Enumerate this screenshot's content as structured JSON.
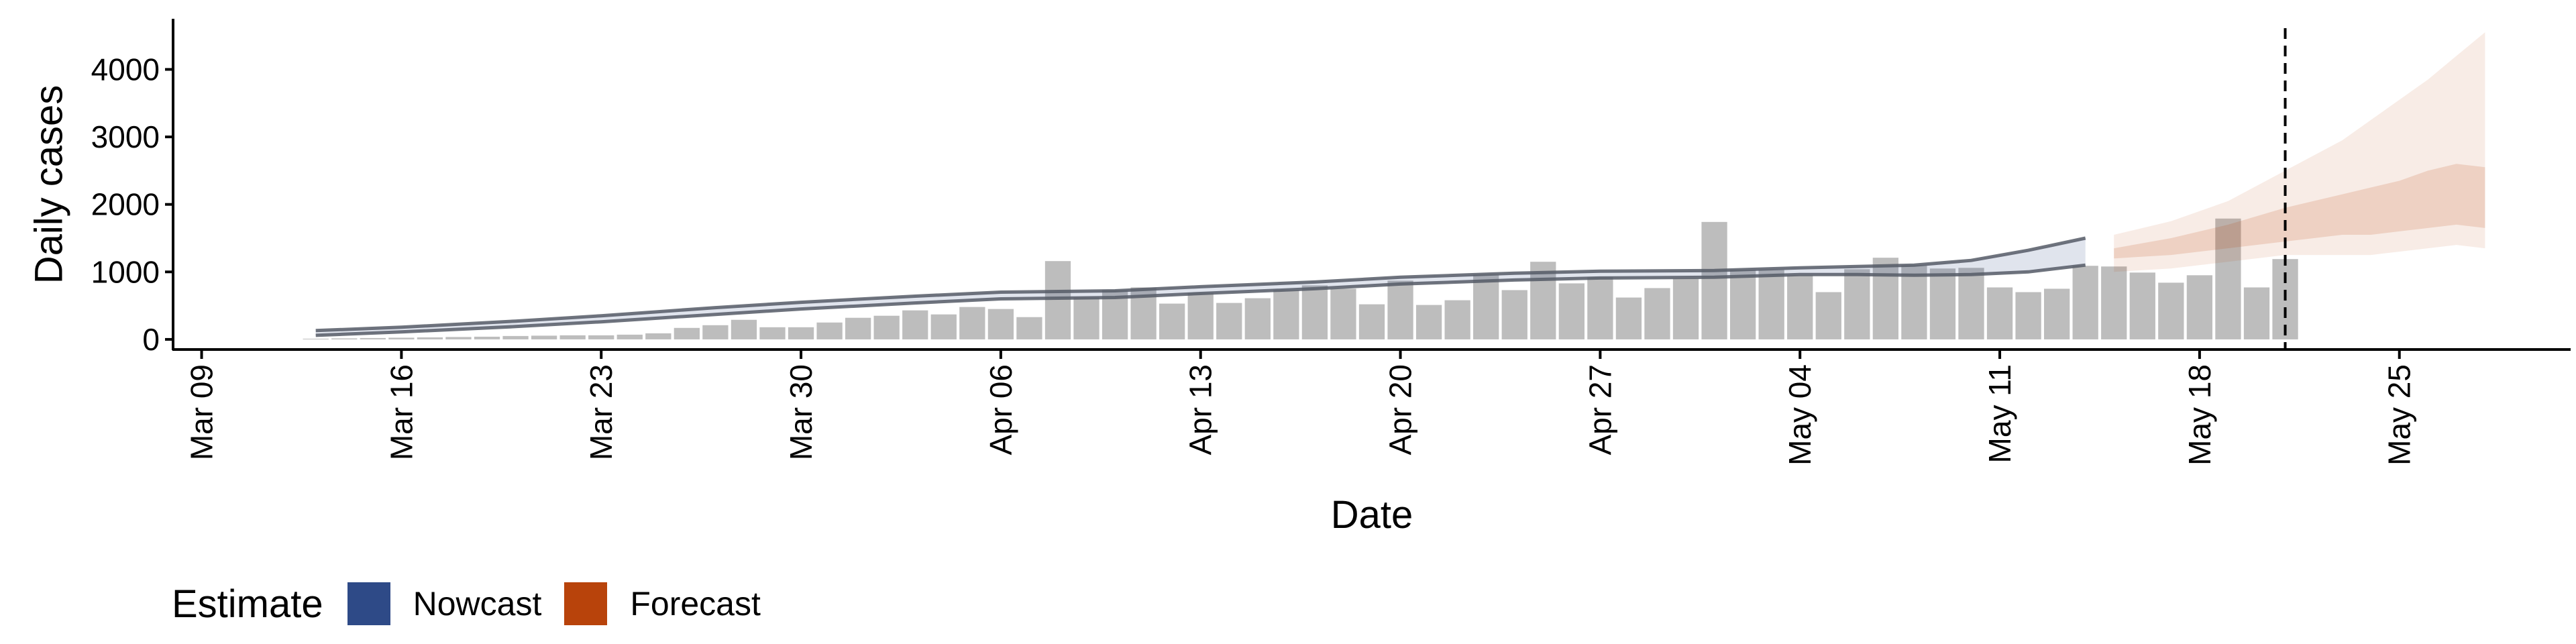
{
  "chart_data": {
    "type": "bar",
    "xlabel": "Date",
    "ylabel": "Daily cases",
    "x_start": "2020-03-09",
    "x_range": [
      "2020-03-08",
      "2020-05-31"
    ],
    "ylim": [
      -150,
      4750
    ],
    "y_ticks": [
      0,
      1000,
      2000,
      3000,
      4000
    ],
    "x_ticks": [
      "Mar 09",
      "Mar 16",
      "Mar 23",
      "Mar 30",
      "Apr 06",
      "Apr 13",
      "Apr 20",
      "Apr 27",
      "May 04",
      "May 11",
      "May 18",
      "May 25"
    ],
    "x_tick_dates": [
      "2020-03-09",
      "2020-03-16",
      "2020-03-23",
      "2020-03-30",
      "2020-04-06",
      "2020-04-13",
      "2020-04-20",
      "2020-04-27",
      "2020-05-04",
      "2020-05-11",
      "2020-05-18",
      "2020-05-25"
    ],
    "bar_color": "#bdbdbd",
    "reported_cases": {
      "dates": [
        "2020-03-13",
        "2020-03-14",
        "2020-03-15",
        "2020-03-16",
        "2020-03-17",
        "2020-03-18",
        "2020-03-19",
        "2020-03-20",
        "2020-03-21",
        "2020-03-22",
        "2020-03-23",
        "2020-03-24",
        "2020-03-25",
        "2020-03-26",
        "2020-03-27",
        "2020-03-28",
        "2020-03-29",
        "2020-03-30",
        "2020-03-31",
        "2020-04-01",
        "2020-04-02",
        "2020-04-03",
        "2020-04-04",
        "2020-04-05",
        "2020-04-06",
        "2020-04-07",
        "2020-04-08",
        "2020-04-09",
        "2020-04-10",
        "2020-04-11",
        "2020-04-12",
        "2020-04-13",
        "2020-04-14",
        "2020-04-15",
        "2020-04-16",
        "2020-04-17",
        "2020-04-18",
        "2020-04-19",
        "2020-04-20",
        "2020-04-21",
        "2020-04-22",
        "2020-04-23",
        "2020-04-24",
        "2020-04-25",
        "2020-04-26",
        "2020-04-27",
        "2020-04-28",
        "2020-04-29",
        "2020-04-30",
        "2020-05-01",
        "2020-05-02",
        "2020-05-03",
        "2020-05-04",
        "2020-05-05",
        "2020-05-06",
        "2020-05-07",
        "2020-05-08",
        "2020-05-09",
        "2020-05-10",
        "2020-05-11",
        "2020-05-12",
        "2020-05-13",
        "2020-05-14",
        "2020-05-15",
        "2020-05-16",
        "2020-05-17",
        "2020-05-18",
        "2020-05-19",
        "2020-05-20",
        "2020-05-21"
      ],
      "values": [
        10,
        15,
        20,
        25,
        30,
        35,
        40,
        50,
        55,
        60,
        60,
        70,
        90,
        170,
        210,
        290,
        180,
        180,
        250,
        320,
        350,
        430,
        370,
        480,
        450,
        330,
        1160,
        620,
        730,
        770,
        530,
        690,
        540,
        610,
        730,
        800,
        750,
        520,
        870,
        510,
        580,
        960,
        730,
        1150,
        830,
        920,
        620,
        760,
        900,
        1740,
        1030,
        1030,
        950,
        700,
        1040,
        1210,
        1100,
        1050,
        1060,
        770,
        700,
        750,
        1090,
        1080,
        990,
        840,
        950,
        1790,
        770,
        1190
      ]
    },
    "series": [
      {
        "name": "Nowcast",
        "color": "#2E4A87",
        "dates": [
          "2020-03-13",
          "2020-03-16",
          "2020-03-20",
          "2020-03-23",
          "2020-03-27",
          "2020-03-30",
          "2020-04-03",
          "2020-04-06",
          "2020-04-10",
          "2020-04-13",
          "2020-04-17",
          "2020-04-20",
          "2020-04-24",
          "2020-04-27",
          "2020-05-01",
          "2020-05-04",
          "2020-05-06",
          "2020-05-08",
          "2020-05-10",
          "2020-05-12",
          "2020-05-14"
        ],
        "upper": [
          130,
          180,
          270,
          350,
          470,
          550,
          640,
          700,
          720,
          780,
          850,
          920,
          980,
          1010,
          1020,
          1060,
          1080,
          1100,
          1170,
          1320,
          1500
        ],
        "lower": [
          60,
          110,
          190,
          260,
          370,
          450,
          540,
          600,
          620,
          680,
          750,
          820,
          880,
          910,
          920,
          960,
          960,
          950,
          960,
          1000,
          1100
        ]
      },
      {
        "name": "Forecast",
        "color": "#B8430B",
        "dates": [
          "2020-05-15",
          "2020-05-17",
          "2020-05-19",
          "2020-05-21",
          "2020-05-23",
          "2020-05-24",
          "2020-05-25",
          "2020-05-26",
          "2020-05-27",
          "2020-05-28"
        ],
        "outer_upper": [
          1550,
          1750,
          2050,
          2500,
          2950,
          3250,
          3550,
          3850,
          4200,
          4550
        ],
        "outer_lower": [
          1000,
          1050,
          1150,
          1250,
          1250,
          1250,
          1300,
          1350,
          1400,
          1350
        ],
        "inner_upper": [
          1350,
          1500,
          1700,
          1950,
          2150,
          2250,
          2350,
          2500,
          2600,
          2550
        ],
        "inner_lower": [
          1200,
          1250,
          1350,
          1450,
          1550,
          1550,
          1600,
          1650,
          1700,
          1650
        ]
      }
    ],
    "vline_date": "2020-05-21",
    "legend": {
      "title": "Estimate",
      "position": "bottom-left",
      "items": [
        {
          "label": "Nowcast",
          "color": "#2E4A87"
        },
        {
          "label": "Forecast",
          "color": "#B8430B"
        }
      ]
    }
  }
}
